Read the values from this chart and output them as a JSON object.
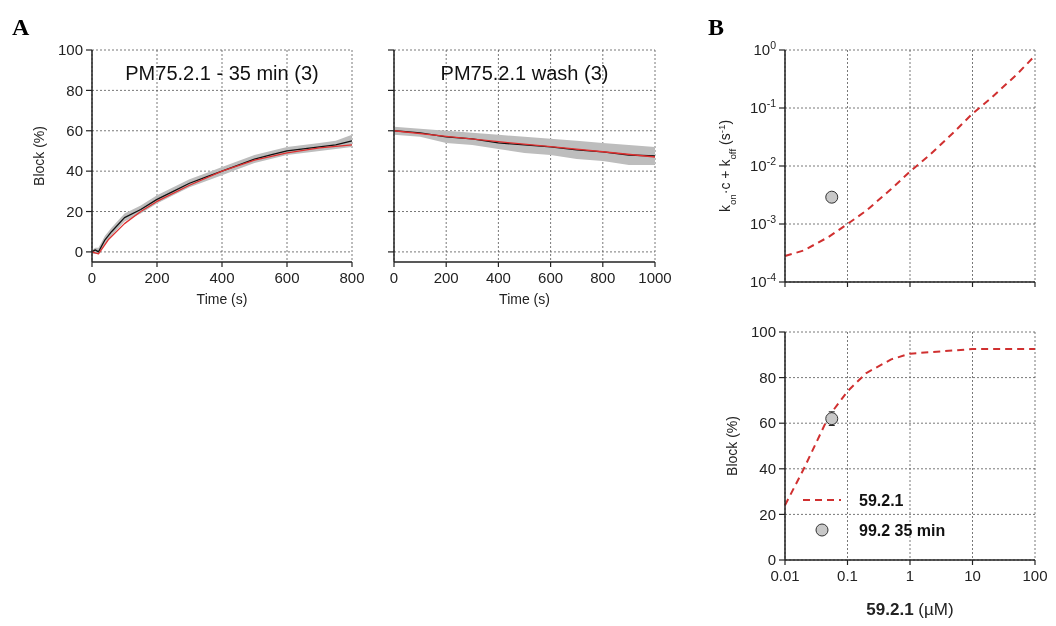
{
  "chart_data": [
    {
      "type": "line",
      "title": "PM75.2.1 - 35 min (3)",
      "xlabel": "Time (s)",
      "ylabel": "Block (%)",
      "annotations": [
        "A"
      ],
      "xlim": [
        0,
        800
      ],
      "xticks": [
        0,
        200,
        400,
        600,
        800
      ],
      "ylim": [
        -5,
        100
      ],
      "yticks": [
        0,
        20,
        40,
        60,
        80,
        100
      ],
      "grid": true,
      "series": [
        {
          "color": "#111111",
          "x": [
            0,
            10,
            20,
            40,
            60,
            100,
            150,
            200,
            250,
            300,
            350,
            400,
            450,
            500,
            550,
            600,
            650,
            700,
            750,
            800
          ],
          "values": [
            0,
            1,
            0,
            6,
            10,
            17,
            21,
            26,
            30,
            34,
            37,
            40,
            43,
            46,
            48,
            50,
            51,
            52,
            53,
            55
          ],
          "lower": [
            -1,
            -1,
            -1,
            4,
            8,
            15,
            19,
            24,
            28,
            32,
            35,
            38,
            41,
            44,
            46,
            48,
            49,
            50,
            51,
            52
          ],
          "upper": [
            1,
            2,
            2,
            8,
            12,
            19,
            23,
            28,
            32,
            36,
            39,
            42,
            45,
            48,
            50,
            52,
            53,
            54,
            55,
            58
          ]
        },
        {
          "color": "#e03030",
          "x": [
            0,
            20,
            50,
            100,
            150,
            200,
            300,
            400,
            500,
            600,
            700,
            800
          ],
          "values": [
            0,
            -1,
            6,
            14,
            20,
            25,
            33,
            40,
            45.5,
            49,
            51.5,
            53
          ]
        }
      ]
    },
    {
      "type": "line",
      "title": "PM75.2.1 wash (3)",
      "xlabel": "Time (s)",
      "xlim": [
        0,
        1000
      ],
      "xticks": [
        0,
        200,
        400,
        600,
        800,
        1000
      ],
      "ylim": [
        -5,
        100
      ],
      "yticks": [
        0,
        20,
        40,
        60,
        80,
        100
      ],
      "grid": true,
      "tick_labels": "x",
      "series": [
        {
          "color": "#111111",
          "x": [
            0,
            100,
            200,
            300,
            400,
            500,
            600,
            700,
            800,
            900,
            1000
          ],
          "values": [
            60,
            59,
            57,
            56,
            54,
            53,
            52,
            50.5,
            49.5,
            48,
            47.5
          ],
          "lower": [
            58,
            57,
            54,
            53,
            51,
            49,
            48,
            46,
            45,
            43,
            43
          ],
          "upper": [
            62,
            61,
            60,
            59,
            58,
            57,
            56,
            55,
            54,
            53,
            52
          ]
        },
        {
          "color": "#e03030",
          "x": [
            0,
            200,
            400,
            600,
            800,
            1000
          ],
          "values": [
            60,
            57.2,
            54.6,
            52.1,
            49.6,
            47
          ]
        }
      ]
    },
    {
      "type": "line",
      "ylabel": "k$_{on}$·c + k$_{off}$ (s$^{-1}$)",
      "annotations": [
        "B"
      ],
      "log": "xy",
      "xlim": [
        0.01,
        100
      ],
      "xticks": [
        0.01,
        0.1,
        1,
        10,
        100
      ],
      "ylim": [
        0.0001,
        1
      ],
      "yticks": [
        {
          "value": 0.0001,
          "label": "10$^{-4}$"
        },
        {
          "value": 0.001,
          "label": "10$^{-3}$"
        },
        {
          "value": 0.01,
          "label": "10$^{-2}$"
        },
        {
          "value": 0.1,
          "label": "10$^{-1}$"
        },
        {
          "value": 1,
          "label": "10$^{0}$"
        }
      ],
      "grid": true,
      "tick_labels": "y",
      "series": [
        {
          "color": "#d03030",
          "line_style": "dashed",
          "x": [
            0.01,
            0.02,
            0.05,
            0.1,
            0.2,
            0.5,
            1,
            2,
            5,
            10,
            20,
            50,
            100
          ],
          "values": [
            0.00028,
            0.00035,
            0.0006,
            0.001,
            0.0017,
            0.004,
            0.008,
            0.015,
            0.038,
            0.08,
            0.15,
            0.37,
            0.8
          ]
        },
        {
          "type": "scatter",
          "marker": "circle",
          "color": "#c8c8c8",
          "x": [
            0.056
          ],
          "values": [
            0.0029
          ]
        }
      ]
    },
    {
      "type": "line",
      "xlabel": "59.2.1 (µM)",
      "ylabel": "Block (%)",
      "log": "x",
      "xlim": [
        0.01,
        100
      ],
      "xticks": [
        0.01,
        0.1,
        1,
        10,
        100
      ],
      "ylim": [
        0,
        100
      ],
      "yticks": [
        0,
        20,
        40,
        60,
        80,
        100
      ],
      "grid": true,
      "legend": "bottom left",
      "series": [
        {
          "name": "59.2.1",
          "color": "#d03030",
          "line_style": "dashed",
          "x": [
            0.01,
            0.02,
            0.05,
            0.1,
            0.2,
            0.5,
            1,
            10,
            100
          ],
          "values": [
            24,
            40,
            63,
            74,
            82,
            88,
            90.5,
            92.5,
            92.5
          ]
        },
        {
          "name": "99.2 35 min",
          "type": "scatter",
          "marker": "circle",
          "color": "#c8c8c8",
          "x": [
            0.056
          ],
          "values": [
            62
          ],
          "errors": [
            3
          ]
        }
      ]
    }
  ]
}
